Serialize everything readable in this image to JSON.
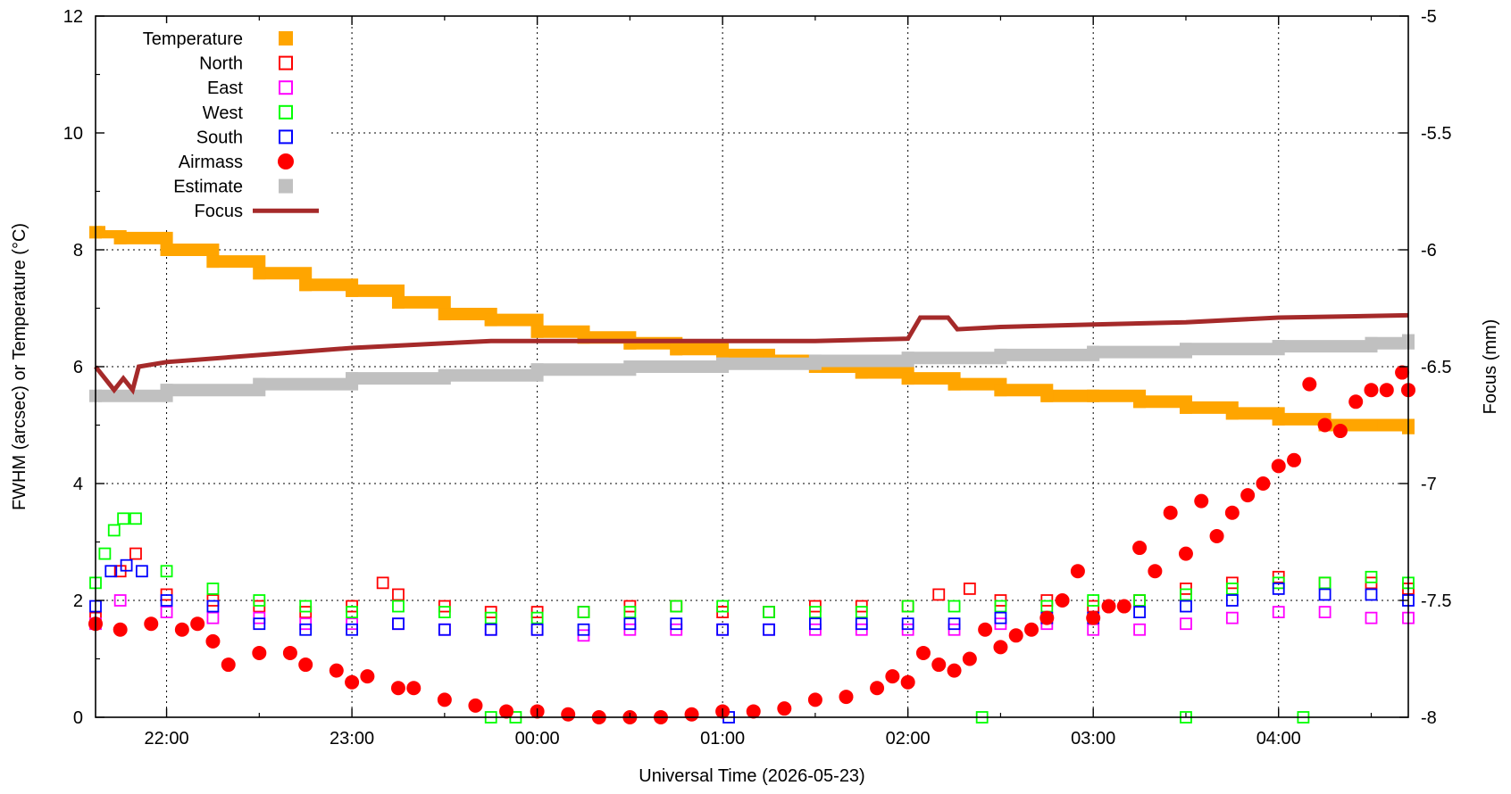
{
  "chart_data": {
    "type": "scatter",
    "xlabel": "Universal Time (2026-05-23)",
    "ylabel": "FWHM (arcsec) or Temperature (°C)",
    "y2label": "Focus (mm)",
    "x_range": [
      "21:37",
      "04:42"
    ],
    "x_ticks": [
      "22:00",
      "23:00",
      "00:00",
      "01:00",
      "02:00",
      "03:00",
      "04:00"
    ],
    "ylim": [
      0,
      12
    ],
    "y_ticks": [
      "0",
      "2",
      "4",
      "6",
      "8",
      "10",
      "12"
    ],
    "y2lim": [
      -8,
      -5
    ],
    "y2_ticks": [
      "-8",
      "-7.5",
      "-7",
      "-6.5",
      "-6",
      "-5.5",
      "-5"
    ],
    "grid": true,
    "legend_position": "top-left",
    "legend": [
      {
        "label": "Temperature",
        "color": "#ffa500",
        "marker": "filled-square"
      },
      {
        "label": "North",
        "color": "#ff0000",
        "marker": "open-square"
      },
      {
        "label": "East",
        "color": "#ff00ff",
        "marker": "open-square"
      },
      {
        "label": "West",
        "color": "#00ff00",
        "marker": "open-square"
      },
      {
        "label": "South",
        "color": "#0000ff",
        "marker": "open-square"
      },
      {
        "label": "Airmass",
        "color": "#ff0000",
        "marker": "filled-circle"
      },
      {
        "label": "Estimate",
        "color": "#c0c0c0",
        "marker": "filled-square"
      },
      {
        "label": "Focus",
        "color": "#a52a2a",
        "marker": "line"
      }
    ],
    "series": [
      {
        "name": "Temperature",
        "axis": "y1",
        "points": [
          [
            "21:37",
            8.3
          ],
          [
            "21:45",
            8.2
          ],
          [
            "22:00",
            8.0
          ],
          [
            "22:15",
            7.8
          ],
          [
            "22:30",
            7.6
          ],
          [
            "22:45",
            7.4
          ],
          [
            "23:00",
            7.3
          ],
          [
            "23:15",
            7.1
          ],
          [
            "23:30",
            6.9
          ],
          [
            "23:45",
            6.8
          ],
          [
            "00:00",
            6.6
          ],
          [
            "00:15",
            6.5
          ],
          [
            "00:30",
            6.4
          ],
          [
            "00:45",
            6.3
          ],
          [
            "01:00",
            6.2
          ],
          [
            "01:15",
            6.1
          ],
          [
            "01:30",
            6.0
          ],
          [
            "01:45",
            5.9
          ],
          [
            "02:00",
            5.8
          ],
          [
            "02:15",
            5.7
          ],
          [
            "02:30",
            5.6
          ],
          [
            "02:45",
            5.5
          ],
          [
            "03:00",
            5.5
          ],
          [
            "03:15",
            5.4
          ],
          [
            "03:30",
            5.3
          ],
          [
            "03:45",
            5.2
          ],
          [
            "04:00",
            5.1
          ],
          [
            "04:15",
            5.0
          ],
          [
            "04:30",
            5.0
          ],
          [
            "04:42",
            4.95
          ]
        ]
      },
      {
        "name": "Estimate",
        "axis": "y1",
        "points": [
          [
            "21:37",
            5.5
          ],
          [
            "22:00",
            5.6
          ],
          [
            "22:30",
            5.7
          ],
          [
            "23:00",
            5.8
          ],
          [
            "23:30",
            5.85
          ],
          [
            "00:00",
            5.95
          ],
          [
            "00:30",
            6.0
          ],
          [
            "01:00",
            6.05
          ],
          [
            "01:30",
            6.1
          ],
          [
            "02:00",
            6.15
          ],
          [
            "02:30",
            6.2
          ],
          [
            "03:00",
            6.25
          ],
          [
            "03:30",
            6.3
          ],
          [
            "04:00",
            6.35
          ],
          [
            "04:30",
            6.4
          ],
          [
            "04:42",
            6.45
          ]
        ]
      },
      {
        "name": "Focus",
        "axis": "y2",
        "points": [
          [
            "21:37",
            -6.5
          ],
          [
            "21:40",
            -6.55
          ],
          [
            "21:43",
            -6.6
          ],
          [
            "21:46",
            -6.55
          ],
          [
            "21:49",
            -6.6
          ],
          [
            "21:51",
            -6.5
          ],
          [
            "22:00",
            -6.48
          ],
          [
            "22:30",
            -6.45
          ],
          [
            "23:00",
            -6.42
          ],
          [
            "23:30",
            -6.4
          ],
          [
            "23:45",
            -6.39
          ],
          [
            "00:00",
            -6.39
          ],
          [
            "00:30",
            -6.39
          ],
          [
            "01:00",
            -6.39
          ],
          [
            "01:30",
            -6.39
          ],
          [
            "02:00",
            -6.38
          ],
          [
            "02:04",
            -6.29
          ],
          [
            "02:13",
            -6.29
          ],
          [
            "02:16",
            -6.34
          ],
          [
            "02:30",
            -6.33
          ],
          [
            "03:00",
            -6.32
          ],
          [
            "03:30",
            -6.31
          ],
          [
            "04:00",
            -6.29
          ],
          [
            "04:42",
            -6.28
          ]
        ]
      },
      {
        "name": "North",
        "axis": "y1",
        "points": [
          [
            "21:37",
            1.7
          ],
          [
            "21:45",
            2.5
          ],
          [
            "21:50",
            2.8
          ],
          [
            "22:00",
            2.1
          ],
          [
            "22:15",
            2.0
          ],
          [
            "22:30",
            1.9
          ],
          [
            "22:45",
            1.8
          ],
          [
            "23:00",
            1.9
          ],
          [
            "23:10",
            2.3
          ],
          [
            "23:15",
            2.1
          ],
          [
            "23:30",
            1.9
          ],
          [
            "23:45",
            1.8
          ],
          [
            "00:00",
            1.8
          ],
          [
            "00:15",
            1.8
          ],
          [
            "00:30",
            1.9
          ],
          [
            "00:45",
            1.9
          ],
          [
            "01:00",
            1.8
          ],
          [
            "01:15",
            1.8
          ],
          [
            "01:30",
            1.9
          ],
          [
            "01:45",
            1.9
          ],
          [
            "02:00",
            1.9
          ],
          [
            "02:10",
            2.1
          ],
          [
            "02:20",
            2.2
          ],
          [
            "02:30",
            2.0
          ],
          [
            "02:45",
            2.0
          ],
          [
            "03:00",
            1.9
          ],
          [
            "03:15",
            2.0
          ],
          [
            "03:30",
            2.2
          ],
          [
            "03:45",
            2.3
          ],
          [
            "04:00",
            2.4
          ],
          [
            "04:15",
            2.3
          ],
          [
            "04:30",
            2.3
          ],
          [
            "04:42",
            2.2
          ]
        ]
      },
      {
        "name": "East",
        "axis": "y1",
        "points": [
          [
            "21:37",
            1.6
          ],
          [
            "21:45",
            2.0
          ],
          [
            "22:00",
            1.8
          ],
          [
            "22:15",
            1.7
          ],
          [
            "22:30",
            1.7
          ],
          [
            "22:45",
            1.6
          ],
          [
            "23:00",
            1.6
          ],
          [
            "23:15",
            1.6
          ],
          [
            "23:30",
            1.5
          ],
          [
            "23:45",
            1.5
          ],
          [
            "00:00",
            1.5
          ],
          [
            "00:15",
            1.4
          ],
          [
            "00:30",
            1.5
          ],
          [
            "00:45",
            1.5
          ],
          [
            "01:00",
            1.5
          ],
          [
            "01:15",
            1.5
          ],
          [
            "01:30",
            1.5
          ],
          [
            "01:45",
            1.5
          ],
          [
            "02:00",
            1.5
          ],
          [
            "02:15",
            1.5
          ],
          [
            "02:30",
            1.6
          ],
          [
            "02:45",
            1.6
          ],
          [
            "03:00",
            1.5
          ],
          [
            "03:15",
            1.5
          ],
          [
            "03:30",
            1.6
          ],
          [
            "03:45",
            1.7
          ],
          [
            "04:00",
            1.8
          ],
          [
            "04:15",
            1.8
          ],
          [
            "04:30",
            1.7
          ],
          [
            "04:42",
            1.7
          ]
        ]
      },
      {
        "name": "West",
        "axis": "y1",
        "points": [
          [
            "21:37",
            2.3
          ],
          [
            "21:40",
            2.8
          ],
          [
            "21:43",
            3.2
          ],
          [
            "21:46",
            3.4
          ],
          [
            "21:50",
            3.4
          ],
          [
            "22:00",
            2.5
          ],
          [
            "22:15",
            2.2
          ],
          [
            "22:30",
            2.0
          ],
          [
            "22:45",
            1.9
          ],
          [
            "23:00",
            1.8
          ],
          [
            "23:15",
            1.9
          ],
          [
            "23:30",
            1.8
          ],
          [
            "23:45",
            1.7
          ],
          [
            "00:00",
            1.7
          ],
          [
            "00:15",
            1.8
          ],
          [
            "00:30",
            1.8
          ],
          [
            "00:45",
            1.9
          ],
          [
            "01:00",
            1.9
          ],
          [
            "01:15",
            1.8
          ],
          [
            "01:30",
            1.8
          ],
          [
            "01:45",
            1.8
          ],
          [
            "02:00",
            1.9
          ],
          [
            "02:15",
            1.9
          ],
          [
            "02:30",
            1.9
          ],
          [
            "02:45",
            1.9
          ],
          [
            "03:00",
            2.0
          ],
          [
            "03:15",
            2.0
          ],
          [
            "03:30",
            2.1
          ],
          [
            "03:45",
            2.2
          ],
          [
            "04:00",
            2.3
          ],
          [
            "04:15",
            2.3
          ],
          [
            "04:30",
            2.4
          ],
          [
            "04:42",
            2.3
          ],
          [
            "23:45",
            0.0
          ],
          [
            "23:53",
            0.0
          ],
          [
            "02:24",
            0.0
          ],
          [
            "03:30",
            0.0
          ],
          [
            "04:08",
            0.0
          ]
        ]
      },
      {
        "name": "South",
        "axis": "y1",
        "points": [
          [
            "21:37",
            1.9
          ],
          [
            "21:42",
            2.5
          ],
          [
            "21:47",
            2.6
          ],
          [
            "21:52",
            2.5
          ],
          [
            "22:00",
            2.0
          ],
          [
            "22:15",
            1.9
          ],
          [
            "22:30",
            1.6
          ],
          [
            "22:45",
            1.5
          ],
          [
            "23:00",
            1.5
          ],
          [
            "23:15",
            1.6
          ],
          [
            "23:30",
            1.5
          ],
          [
            "23:45",
            1.5
          ],
          [
            "00:00",
            1.5
          ],
          [
            "00:15",
            1.5
          ],
          [
            "00:30",
            1.6
          ],
          [
            "00:45",
            1.6
          ],
          [
            "01:00",
            1.5
          ],
          [
            "01:15",
            1.5
          ],
          [
            "01:30",
            1.6
          ],
          [
            "01:45",
            1.6
          ],
          [
            "02:00",
            1.6
          ],
          [
            "02:15",
            1.6
          ],
          [
            "02:30",
            1.7
          ],
          [
            "02:45",
            1.7
          ],
          [
            "03:00",
            1.7
          ],
          [
            "03:15",
            1.8
          ],
          [
            "03:30",
            1.9
          ],
          [
            "03:45",
            2.0
          ],
          [
            "04:00",
            2.2
          ],
          [
            "04:15",
            2.1
          ],
          [
            "04:30",
            2.1
          ],
          [
            "04:42",
            2.0
          ],
          [
            "01:02",
            0.0
          ]
        ]
      },
      {
        "name": "Airmass",
        "axis": "y1",
        "points": [
          [
            "21:37",
            1.6
          ],
          [
            "21:45",
            1.5
          ],
          [
            "21:55",
            1.6
          ],
          [
            "22:05",
            1.5
          ],
          [
            "22:10",
            1.6
          ],
          [
            "22:15",
            1.3
          ],
          [
            "22:20",
            0.9
          ],
          [
            "22:30",
            1.1
          ],
          [
            "22:40",
            1.1
          ],
          [
            "22:45",
            0.9
          ],
          [
            "22:55",
            0.8
          ],
          [
            "23:00",
            0.6
          ],
          [
            "23:05",
            0.7
          ],
          [
            "23:15",
            0.5
          ],
          [
            "23:20",
            0.5
          ],
          [
            "23:30",
            0.3
          ],
          [
            "23:40",
            0.2
          ],
          [
            "23:50",
            0.1
          ],
          [
            "00:00",
            0.1
          ],
          [
            "00:10",
            0.05
          ],
          [
            "00:20",
            0.0
          ],
          [
            "00:30",
            0.0
          ],
          [
            "00:40",
            0.0
          ],
          [
            "00:50",
            0.05
          ],
          [
            "01:00",
            0.1
          ],
          [
            "01:10",
            0.1
          ],
          [
            "01:20",
            0.15
          ],
          [
            "01:30",
            0.3
          ],
          [
            "01:40",
            0.35
          ],
          [
            "01:50",
            0.5
          ],
          [
            "01:55",
            0.7
          ],
          [
            "02:00",
            0.6
          ],
          [
            "02:05",
            1.1
          ],
          [
            "02:10",
            0.9
          ],
          [
            "02:15",
            0.8
          ],
          [
            "02:20",
            1.0
          ],
          [
            "02:25",
            1.5
          ],
          [
            "02:30",
            1.2
          ],
          [
            "02:35",
            1.4
          ],
          [
            "02:40",
            1.5
          ],
          [
            "02:45",
            1.7
          ],
          [
            "02:50",
            2.0
          ],
          [
            "02:55",
            2.5
          ],
          [
            "03:00",
            1.7
          ],
          [
            "03:05",
            1.9
          ],
          [
            "03:10",
            1.9
          ],
          [
            "03:15",
            2.9
          ],
          [
            "03:20",
            2.5
          ],
          [
            "03:25",
            3.5
          ],
          [
            "03:30",
            2.8
          ],
          [
            "03:35",
            3.7
          ],
          [
            "03:40",
            3.1
          ],
          [
            "03:45",
            3.5
          ],
          [
            "03:50",
            3.8
          ],
          [
            "03:55",
            4.0
          ],
          [
            "04:00",
            4.3
          ],
          [
            "04:05",
            4.4
          ],
          [
            "04:10",
            5.7
          ],
          [
            "04:15",
            5.0
          ],
          [
            "04:20",
            4.9
          ],
          [
            "04:25",
            5.4
          ],
          [
            "04:30",
            5.6
          ],
          [
            "04:35",
            5.6
          ],
          [
            "04:40",
            5.9
          ],
          [
            "04:42",
            5.6
          ]
        ]
      }
    ]
  }
}
